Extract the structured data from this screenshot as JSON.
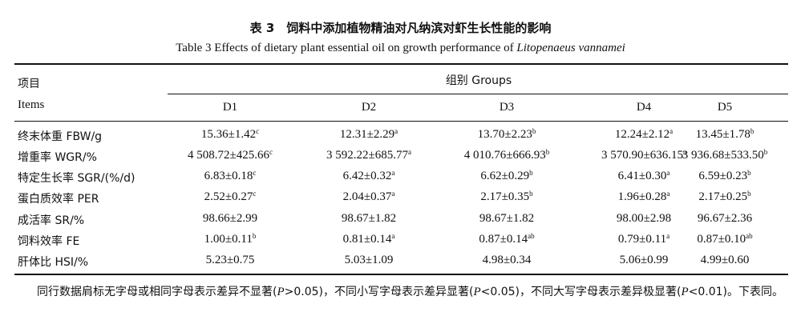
{
  "title_cn": "表 3　饲料中添加植物精油对凡纳滨对虾生长性能的影响",
  "title_en": "Table 3   Effects of dietary plant essential oil on growth performance of ",
  "title_en_italic": "Litopenaeus vannamei",
  "header": {
    "items_cn": "项目",
    "items_en": "Items",
    "groups": "组别 Groups",
    "cols": [
      "D1",
      "D2",
      "D3",
      "D4",
      "D5"
    ]
  },
  "rows": [
    {
      "label": "终末体重 FBW/g",
      "cells": [
        {
          "v": "15.36±1.42",
          "s": "c"
        },
        {
          "v": "12.31±2.29",
          "s": "a"
        },
        {
          "v": "13.70±2.23",
          "s": "b"
        },
        {
          "v": "12.24±2.12",
          "s": "a"
        },
        {
          "v": "13.45±1.78",
          "s": "b"
        }
      ]
    },
    {
      "label": "增重率 WGR/%",
      "cells": [
        {
          "v": "4 508.72±425.66",
          "s": "c"
        },
        {
          "v": "3 592.22±685.77",
          "s": "a"
        },
        {
          "v": "4 010.76±666.93",
          "s": "b"
        },
        {
          "v": "3 570.90±636.15",
          "s": "a"
        },
        {
          "v": "3 936.68±533.50",
          "s": "b"
        }
      ]
    },
    {
      "label": "特定生长率 SGR/(%/d)",
      "cells": [
        {
          "v": "6.83±0.18",
          "s": "c"
        },
        {
          "v": "6.42±0.32",
          "s": "a"
        },
        {
          "v": "6.62±0.29",
          "s": "b"
        },
        {
          "v": "6.41±0.30",
          "s": "a"
        },
        {
          "v": "6.59±0.23",
          "s": "b"
        }
      ]
    },
    {
      "label": "蛋白质效率 PER",
      "cells": [
        {
          "v": "2.52±0.27",
          "s": "c"
        },
        {
          "v": "2.04±0.37",
          "s": "a"
        },
        {
          "v": "2.17±0.35",
          "s": "b"
        },
        {
          "v": "1.96±0.28",
          "s": "a"
        },
        {
          "v": "2.17±0.25",
          "s": "b"
        }
      ]
    },
    {
      "label": "成活率 SR/%",
      "cells": [
        {
          "v": "98.66±2.99",
          "s": ""
        },
        {
          "v": "98.67±1.82",
          "s": ""
        },
        {
          "v": "98.67±1.82",
          "s": ""
        },
        {
          "v": "98.00±2.98",
          "s": ""
        },
        {
          "v": "96.67±2.36",
          "s": ""
        }
      ]
    },
    {
      "label": "饲料效率 FE",
      "cells": [
        {
          "v": "1.00±0.11",
          "s": "b"
        },
        {
          "v": "0.81±0.14",
          "s": "a"
        },
        {
          "v": "0.87±0.14",
          "s": "ab"
        },
        {
          "v": "0.79±0.11",
          "s": "a"
        },
        {
          "v": "0.87±0.10",
          "s": "ab"
        }
      ]
    },
    {
      "label": "肝体比 HSI/%",
      "cells": [
        {
          "v": "5.23±0.75",
          "s": ""
        },
        {
          "v": "5.03±1.09",
          "s": ""
        },
        {
          "v": "4.98±0.34",
          "s": ""
        },
        {
          "v": "5.06±0.99",
          "s": ""
        },
        {
          "v": "4.99±0.60",
          "s": ""
        }
      ]
    }
  ],
  "note": {
    "p1": "同行数据肩标无字母或相同字母表示差异不显著(",
    "p1_i": "P",
    "p2": ">0.05)，不同小写字母表示差异显著(",
    "p2_i": "P",
    "p3": "<0.05)，不同大写字母表示差异极显著(",
    "p3_i": "P",
    "p4": "<0.01)。下表同。"
  }
}
